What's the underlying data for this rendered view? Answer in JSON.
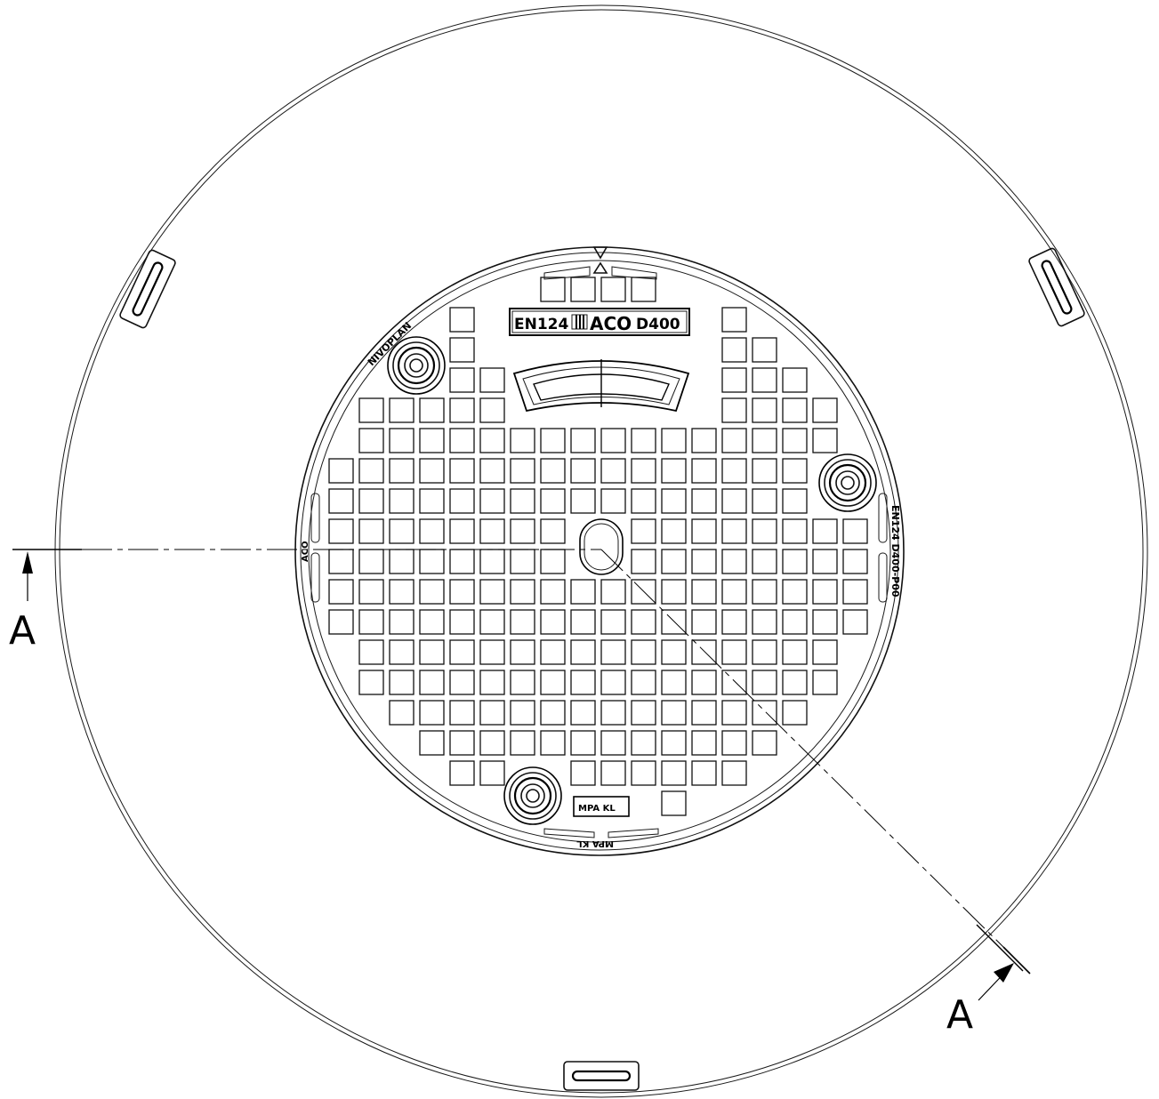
{
  "section_label": "A",
  "cover_markings": {
    "standard": "EN124",
    "brand": "ACO",
    "load_class": "D400",
    "product_name": "NIVOPLAN",
    "rim_left": "ACO",
    "rim_right": "EN124 D400-P00",
    "test_mark": "MPA KL",
    "test_mark_rim": "MPA KL"
  },
  "colors": {
    "line": "#000000",
    "background": "#ffffff"
  }
}
